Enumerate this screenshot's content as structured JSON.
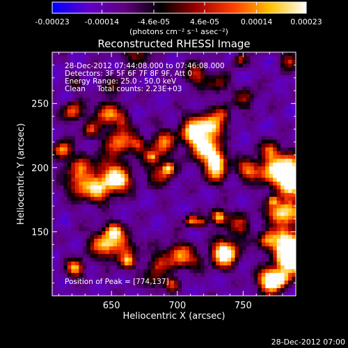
{
  "chart_data": {
    "type": "heatmap",
    "title": "Reconstructed RHESSI Image",
    "xlabel": "Heliocentric X (arcsec)",
    "ylabel": "Heliocentric Y (arcsec)",
    "xlim": [
      605,
      790
    ],
    "ylim": [
      100,
      290
    ],
    "x_ticks": [
      650,
      700,
      750
    ],
    "y_ticks": [
      150,
      200,
      250
    ],
    "colorbar": {
      "min": -0.00023,
      "max": 0.00023,
      "tick_labels": [
        "-0.00023",
        "-0.00014",
        "-4.6e-05",
        "4.6e-05",
        "0.00014",
        "0.00023"
      ],
      "tick_values": [
        -0.00023,
        -0.00014,
        -4.6e-05,
        4.6e-05,
        0.00014,
        0.00023
      ],
      "units_label": "(photons cm⁻² s⁻¹ asec⁻²)",
      "colormap": [
        "#0000ff",
        "#6000c8",
        "#600080",
        "#000000",
        "#a00000",
        "#ff4000",
        "#ffc000",
        "#ffffff"
      ]
    },
    "info_lines": [
      "28-Dec-2012 07:44:08.000 to 07:46:08.000",
      "Detectors: 3F 5F 6F 7F 8F 9F, Att 0",
      "Energy Range: 25.0 - 50.0 keV",
      "Clean     Total counts: 2.23E+03"
    ],
    "peak_label": "Position of Peak = [774,137]",
    "peak": [
      774,
      137
    ],
    "grid": false
  },
  "footer": {
    "timestamp": "28-Dec-2012 07:00"
  }
}
